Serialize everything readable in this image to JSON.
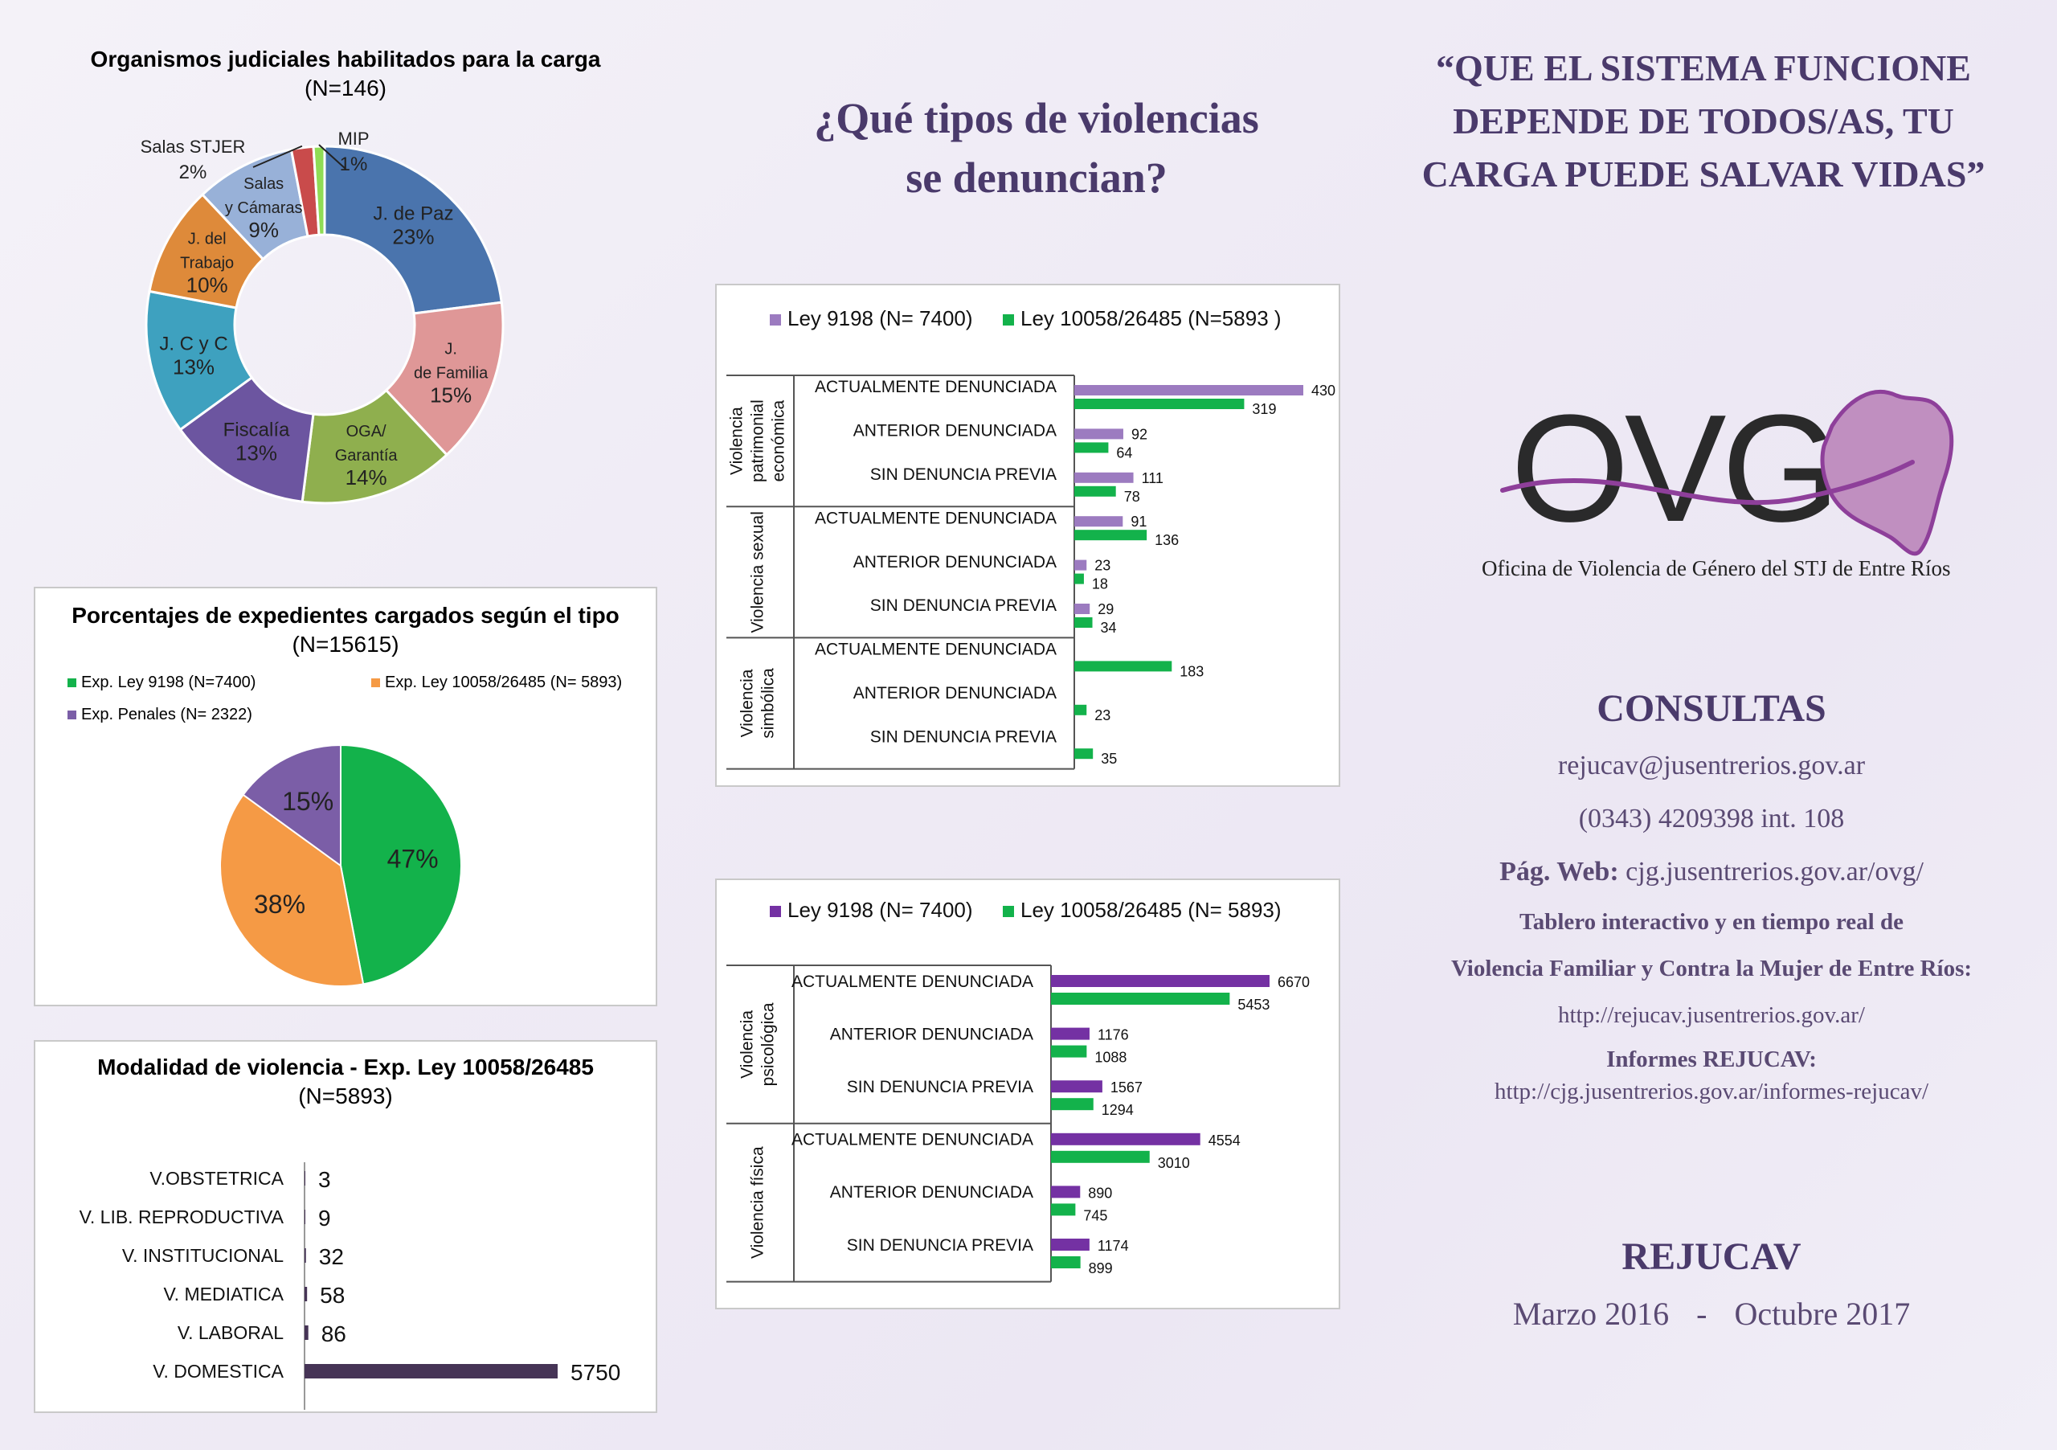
{
  "page": {
    "main_question": [
      "¿Qué tipos de violencias",
      "se denuncian?"
    ],
    "slogan": [
      "“QUE EL SISTEMA FUNCIONE",
      "DEPENDE DE TODOS/AS, TU",
      "CARGA PUEDE SALVAR VIDAS”"
    ],
    "logo": {
      "text": "OVG",
      "caption": "Oficina de Violencia de Género del STJ de Entre Ríos",
      "color_purple": "#8e3f9a",
      "color_map": "#c08fc0"
    },
    "consultas": {
      "title": "CONSULTAS",
      "email": "rejucav@jusentrerios.gov.ar",
      "phone": "(0343) 4209398 int. 108",
      "web_label": "Pág. Web:",
      "web_value": "cjg.jusentrerios.gov.ar/ovg/",
      "tablero_line1": "Tablero interactivo y en tiempo real de",
      "tablero_line2": "Violencia Familiar y Contra la Mujer de Entre Ríos:",
      "tablero_url": "http://rejucav.jusentrerios.gov.ar/",
      "informes_label": "Informes REJUCAV:",
      "informes_url": "http://cjg.jusentrerios.gov.ar/informes-rejucav/"
    },
    "footer": {
      "title": "REJUCAV",
      "period_start": "Marzo 2016",
      "separator": "-",
      "period_end": "Octubre 2017"
    },
    "colors": {
      "heading": "#4a3a6b",
      "text": "#5a4a73"
    }
  },
  "chart_data": [
    {
      "id": "organismos",
      "type": "pie",
      "donut": true,
      "title": "Organismos judiciales habilitados para la carga",
      "subtitle": "(N=146)",
      "slices": [
        {
          "label": "J. de Paz",
          "value": 23,
          "text": "23%",
          "color": "#4a74ad"
        },
        {
          "label": "J. de Familia",
          "value": 15,
          "text": "15%",
          "color": "#df9797"
        },
        {
          "label": "OGA/ Garantía",
          "value": 14,
          "text": "14%",
          "color": "#8faf4e"
        },
        {
          "label": "Fiscalía",
          "value": 13,
          "text": "13%",
          "color": "#6c55a0"
        },
        {
          "label": "J. C y C",
          "value": 13,
          "text": "13%",
          "color": "#3ea1bf"
        },
        {
          "label": "J. del Trabajo",
          "value": 10,
          "text": "10%",
          "color": "#de8a3a"
        },
        {
          "label": "Salas y Cámaras",
          "value": 9,
          "text": "9%",
          "color": "#98b1d8"
        },
        {
          "label": "Salas STJER",
          "value": 2,
          "text": "2%",
          "color": "#c94b4b"
        },
        {
          "label": "MIP",
          "value": 1,
          "text": "1%",
          "color": "#8fdc55"
        }
      ]
    },
    {
      "id": "expedientes",
      "type": "pie",
      "title": "Porcentajes de expedientes cargados según el tipo",
      "subtitle": "(N=15615)",
      "legend": [
        "Exp. Ley 9198 (N=7400)",
        "Exp. Ley 10058/26485 (N= 5893)",
        "Exp. Penales (N= 2322)"
      ],
      "slices": [
        {
          "label": "Exp. Ley 9198 (N=7400)",
          "value": 47,
          "text": "47%",
          "color": "#13b24b"
        },
        {
          "label": "Exp. Ley 10058/26485 (N= 5893)",
          "value": 38,
          "text": "38%",
          "color": "#f59a45"
        },
        {
          "label": "Exp. Penales (N= 2322)",
          "value": 15,
          "text": "15%",
          "color": "#7b5ea7"
        }
      ]
    },
    {
      "id": "modalidad",
      "type": "bar",
      "orientation": "horizontal",
      "title": "Modalidad de violencia - Exp. Ley 10058/26485",
      "subtitle": "(N=5893)",
      "color": "#463456",
      "categories": [
        "V.OBSTETRICA",
        "V. LIB. REPRODUCTIVA",
        "V. INSTITUCIONAL",
        "V. MEDIATICA",
        "V. LABORAL",
        "V. DOMESTICA"
      ],
      "values": [
        3,
        9,
        32,
        58,
        86,
        5750
      ]
    },
    {
      "id": "tipos1",
      "type": "bar",
      "orientation": "horizontal",
      "series": [
        {
          "name": "Ley 9198 (N= 7400)",
          "color": "#9c7bc0"
        },
        {
          "name": "Ley 10058/26485 (N=5893 )",
          "color": "#13b24b"
        }
      ],
      "groups": [
        {
          "label": [
            "Violencia",
            "patrimonial",
            "económica"
          ],
          "rows": [
            {
              "label": "ACTUALMENTE DENUNCIADA",
              "values": [
                430,
                319
              ]
            },
            {
              "label": "ANTERIOR DENUNCIADA",
              "values": [
                92,
                64
              ]
            },
            {
              "label": "SIN DENUNCIA PREVIA",
              "values": [
                111,
                78
              ]
            }
          ]
        },
        {
          "label": [
            "Violencia sexual"
          ],
          "rows": [
            {
              "label": "ACTUALMENTE DENUNCIADA",
              "values": [
                91,
                136
              ]
            },
            {
              "label": "ANTERIOR DENUNCIADA",
              "values": [
                23,
                18
              ]
            },
            {
              "label": "SIN DENUNCIA PREVIA",
              "values": [
                29,
                34
              ]
            }
          ]
        },
        {
          "label": [
            "Violencia",
            "simbólica"
          ],
          "rows": [
            {
              "label": "ACTUALMENTE DENUNCIADA",
              "values": [
                null,
                183
              ]
            },
            {
              "label": "ANTERIOR DENUNCIADA",
              "values": [
                null,
                23
              ]
            },
            {
              "label": "SIN DENUNCIA PREVIA",
              "values": [
                null,
                35
              ]
            }
          ]
        }
      ],
      "scale_max": 430
    },
    {
      "id": "tipos2",
      "type": "bar",
      "orientation": "horizontal",
      "series": [
        {
          "name": "Ley 9198 (N= 7400)",
          "color": "#7431a3"
        },
        {
          "name": "Ley 10058/26485 (N= 5893)",
          "color": "#13b24b"
        }
      ],
      "groups": [
        {
          "label": [
            "Violencia",
            "psicológica"
          ],
          "rows": [
            {
              "label": "ACTUALMENTE DENUNCIADA",
              "values": [
                6670,
                5453
              ]
            },
            {
              "label": "ANTERIOR DENUNCIADA",
              "values": [
                1176,
                1088
              ]
            },
            {
              "label": "SIN DENUNCIA PREVIA",
              "values": [
                1567,
                1294
              ]
            }
          ]
        },
        {
          "label": [
            "Violencia física"
          ],
          "rows": [
            {
              "label": "ACTUALMENTE DENUNCIADA",
              "values": [
                4554,
                3010
              ]
            },
            {
              "label": "ANTERIOR DENUNCIADA",
              "values": [
                890,
                745
              ]
            },
            {
              "label": "SIN DENUNCIA PREVIA",
              "values": [
                1174,
                899
              ]
            }
          ]
        }
      ],
      "scale_max": 6670
    }
  ]
}
